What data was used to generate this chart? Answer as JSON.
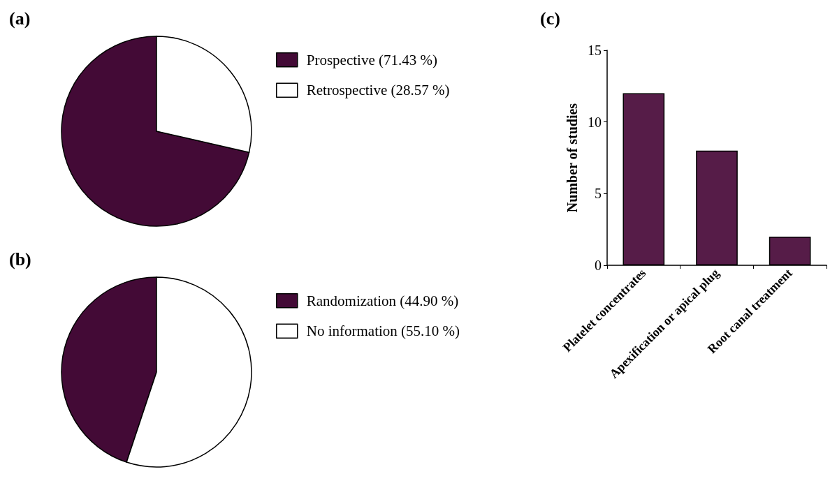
{
  "chart_data": [
    {
      "type": "pie",
      "title": "(a)",
      "categories": [
        "Prospective (71.43 %)",
        "Retrospective (28.57 %)"
      ],
      "values": [
        71.43,
        28.57
      ],
      "colors": [
        "#430a36",
        "#ffffff"
      ],
      "legend": "right"
    },
    {
      "type": "pie",
      "title": "(b)",
      "categories": [
        "Randomization (44.90 %)",
        "No information (55.10 %)"
      ],
      "values": [
        44.9,
        55.1
      ],
      "colors": [
        "#430a36",
        "#ffffff"
      ],
      "legend": "right"
    },
    {
      "type": "bar",
      "title": "(c)",
      "ylabel": "Number of studies",
      "categories": [
        "Platelet concentrates",
        "Apexification or apical plug",
        "Root canal treatment"
      ],
      "values": [
        12,
        8,
        2
      ],
      "color": "#561c48",
      "ylim": [
        0,
        15
      ],
      "yticks": [
        0,
        5,
        10,
        15
      ],
      "grid": false,
      "legend": false
    }
  ]
}
